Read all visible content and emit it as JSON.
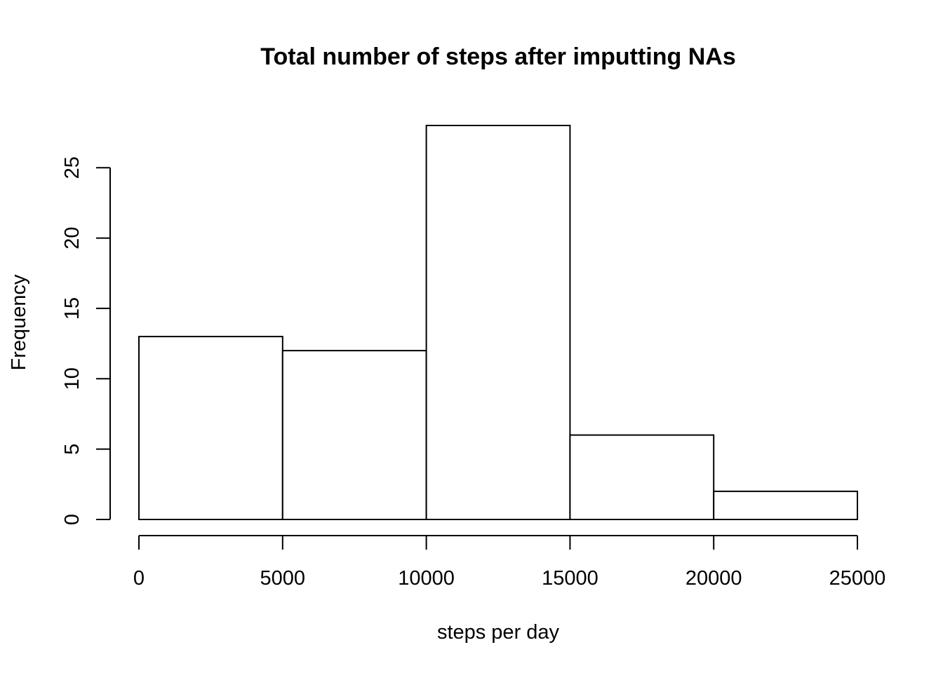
{
  "chart_data": {
    "type": "bar",
    "title": "Total number of steps after imputting NAs",
    "xlabel": "steps per day",
    "ylabel": "Frequency",
    "bins": [
      {
        "from": 0,
        "to": 5000,
        "count": 13
      },
      {
        "from": 5000,
        "to": 10000,
        "count": 12
      },
      {
        "from": 10000,
        "to": 15000,
        "count": 28
      },
      {
        "from": 15000,
        "to": 20000,
        "count": 6
      },
      {
        "from": 20000,
        "to": 25000,
        "count": 2
      }
    ],
    "xlim": [
      0,
      25000
    ],
    "ylim": [
      0,
      28
    ],
    "x_ticks": [
      "0",
      "5000",
      "10000",
      "15000",
      "20000",
      "25000"
    ],
    "y_ticks": [
      "0",
      "5",
      "10",
      "15",
      "20",
      "25"
    ],
    "grid": false,
    "legend": "none",
    "bar_fill": "#ffffff",
    "bar_stroke": "#000000"
  }
}
